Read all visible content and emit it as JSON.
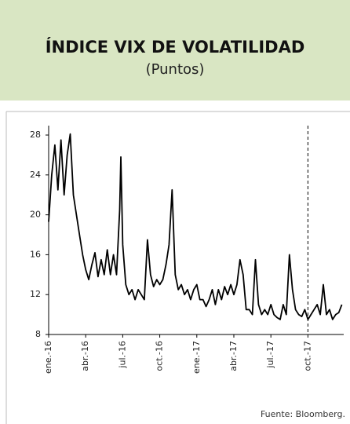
{
  "chart_data": {
    "type": "line",
    "title": "ÍNDICE VIX DE VOLATILIDAD",
    "subtitle": "(Puntos)",
    "source": "Fuente: Bloomberg.",
    "series": [
      {
        "name": "VIX",
        "color": "#000000",
        "x": [
          0,
          0.25,
          0.5,
          0.75,
          1,
          1.25,
          1.5,
          1.75,
          2,
          2.25,
          2.5,
          2.75,
          3,
          3.25,
          3.5,
          3.75,
          4,
          4.25,
          4.5,
          4.75,
          5,
          5.25,
          5.5,
          5.75,
          5.85,
          6,
          6.25,
          6.5,
          6.75,
          7,
          7.25,
          7.5,
          7.75,
          8,
          8.25,
          8.5,
          8.75,
          9,
          9.25,
          9.5,
          9.75,
          10,
          10.25,
          10.5,
          10.75,
          11,
          11.25,
          11.5,
          11.75,
          12,
          12.25,
          12.5,
          12.75,
          13,
          13.25,
          13.5,
          13.75,
          14,
          14.25,
          14.5,
          14.75,
          15,
          15.25,
          15.5,
          15.75,
          16,
          16.25,
          16.5,
          16.75,
          17,
          17.25,
          17.5,
          17.75,
          18,
          18.25,
          18.5,
          18.75,
          19,
          19.25,
          19.5,
          19.75,
          20,
          20.25,
          20.5,
          20.75,
          21,
          21.25,
          21.5,
          21.75,
          22,
          22.25,
          22.5,
          22.75,
          23,
          23.25,
          23.5,
          23.75
        ],
        "values": [
          19.3,
          24,
          27,
          22.5,
          27.5,
          22,
          26,
          28.1,
          22,
          20,
          18,
          16,
          14.5,
          13.5,
          15,
          16.2,
          13.8,
          15.5,
          14,
          16.5,
          14,
          16,
          14,
          20.5,
          25.8,
          17,
          13,
          12,
          12.5,
          11.5,
          12.5,
          12,
          11.5,
          17.5,
          14,
          12.8,
          13.5,
          13,
          13.5,
          15,
          17,
          22.5,
          14,
          12.5,
          13,
          12,
          12.5,
          11.5,
          12.5,
          13,
          11.5,
          11.5,
          10.8,
          11.5,
          12.5,
          11,
          12.5,
          11.5,
          12.8,
          12,
          13,
          12,
          13,
          15.5,
          14,
          10.5,
          10.5,
          10,
          15.5,
          11,
          10,
          10.5,
          10,
          11,
          10,
          9.7,
          9.5,
          11,
          10,
          16,
          12.5,
          10.5,
          10,
          9.8,
          10.5,
          9.5,
          10,
          10.5,
          11,
          10,
          13,
          10,
          10.5,
          9.5,
          10,
          10.2,
          11
        ]
      }
    ],
    "xlim": [
      0,
      23.9
    ],
    "xticks": [
      {
        "value": 0,
        "label": "ene.-16"
      },
      {
        "value": 3,
        "label": "abr.-16"
      },
      {
        "value": 6,
        "label": "jul.-16"
      },
      {
        "value": 9,
        "label": "oct.-16"
      },
      {
        "value": 12,
        "label": "ene.-17"
      },
      {
        "value": 15,
        "label": "abr.-17"
      },
      {
        "value": 18,
        "label": "jul.-17"
      },
      {
        "value": 21,
        "label": "oct.-17"
      }
    ],
    "ylim": [
      8,
      28
    ],
    "yticks": [
      8,
      12,
      16,
      20,
      24,
      28
    ]
  }
}
